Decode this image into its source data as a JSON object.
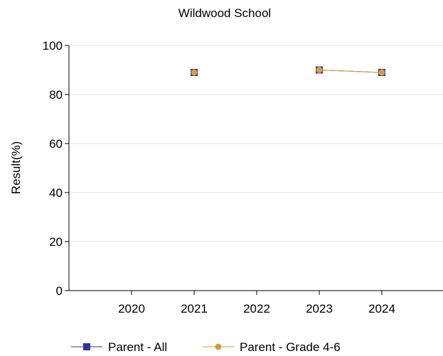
{
  "chart_data": {
    "type": "line",
    "title": "Wildwood School",
    "xlabel": "",
    "ylabel": "Result(%)",
    "categories": [
      "2020",
      "2021",
      "2022",
      "2023",
      "2024"
    ],
    "ylim": [
      0,
      100
    ],
    "yticks": [
      0,
      20,
      40,
      60,
      80,
      100
    ],
    "grid": "horizontal",
    "legend_position": "bottom",
    "series": [
      {
        "name": "Parent - All",
        "color": "#3333a0",
        "marker": "square",
        "values": [
          null,
          89,
          null,
          90,
          89
        ]
      },
      {
        "name": "Parent - Grade 4-6",
        "color": "#d4a035",
        "marker": "circle",
        "values": [
          null,
          89,
          null,
          90,
          89
        ]
      }
    ]
  }
}
